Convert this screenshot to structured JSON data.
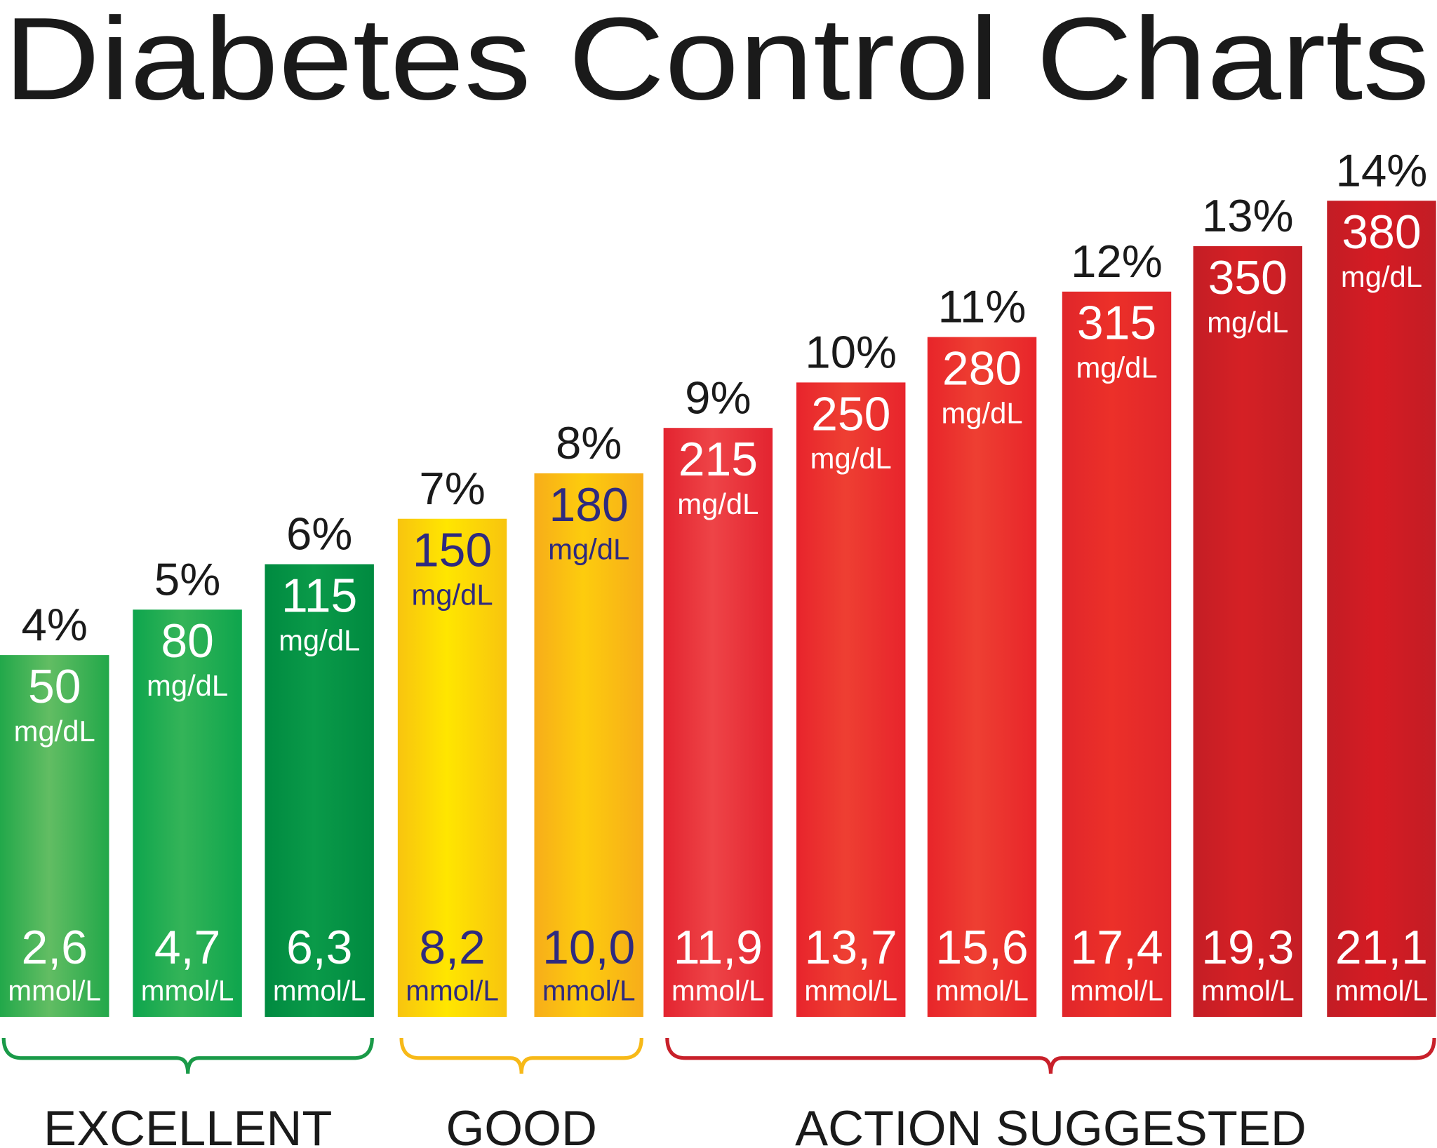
{
  "chart_data": {
    "type": "bar",
    "title": "Diabetes Control Charts",
    "categories": [
      "4%",
      "5%",
      "6%",
      "7%",
      "8%",
      "9%",
      "10%",
      "11%",
      "12%",
      "13%",
      "14%"
    ],
    "hba1c_percent": [
      4,
      5,
      6,
      7,
      8,
      9,
      10,
      11,
      12,
      13,
      14
    ],
    "bars": [
      {
        "percent": "4%",
        "mg_dl": "50",
        "mg_unit": "mg/dL",
        "mmol": "2,6",
        "mmol_unit": "mmol/L",
        "color": "#22a84a",
        "highlight": "#62bd63",
        "text_color": "#ffffff"
      },
      {
        "percent": "5%",
        "mg_dl": "80",
        "mg_unit": "mg/dL",
        "mmol": "4,7",
        "mmol_unit": "mmol/L",
        "color": "#0ea54d",
        "highlight": "#34b458",
        "text_color": "#ffffff"
      },
      {
        "percent": "6%",
        "mg_dl": "115",
        "mg_unit": "mg/dL",
        "mmol": "6,3",
        "mmol_unit": "mmol/L",
        "color": "#008a40",
        "highlight": "#0a9a49",
        "text_color": "#ffffff"
      },
      {
        "percent": "7%",
        "mg_dl": "150",
        "mg_unit": "mg/dL",
        "mmol": "8,2",
        "mmol_unit": "mmol/L",
        "color": "#f8c40f",
        "highlight": "#ffe600",
        "text_color": "#2e2a7f"
      },
      {
        "percent": "8%",
        "mg_dl": "180",
        "mg_unit": "mg/dL",
        "mmol": "10,0",
        "mmol_unit": "mmol/L",
        "color": "#f7ad1a",
        "highlight": "#fdcc0d",
        "text_color": "#2e2a7f"
      },
      {
        "percent": "9%",
        "mg_dl": "215",
        "mg_unit": "mg/dL",
        "mmol": "11,9",
        "mmol_unit": "mmol/L",
        "color": "#e32430",
        "highlight": "#ee4447",
        "text_color": "#ffffff"
      },
      {
        "percent": "10%",
        "mg_dl": "250",
        "mg_unit": "mg/dL",
        "mmol": "13,7",
        "mmol_unit": "mmol/L",
        "color": "#e8242c",
        "highlight": "#ee3f32",
        "text_color": "#ffffff"
      },
      {
        "percent": "11%",
        "mg_dl": "280",
        "mg_unit": "mg/dL",
        "mmol": "15,6",
        "mmol_unit": "mmol/L",
        "color": "#e8252a",
        "highlight": "#ee3f32",
        "text_color": "#ffffff"
      },
      {
        "percent": "12%",
        "mg_dl": "315",
        "mg_unit": "mg/dL",
        "mmol": "17,4",
        "mmol_unit": "mmol/L",
        "color": "#e0262a",
        "highlight": "#ec3029",
        "text_color": "#ffffff"
      },
      {
        "percent": "13%",
        "mg_dl": "350",
        "mg_unit": "mg/dL",
        "mmol": "19,3",
        "mmol_unit": "mmol/L",
        "color": "#c41e25",
        "highlight": "#d52025",
        "text_color": "#ffffff"
      },
      {
        "percent": "14%",
        "mg_dl": "380",
        "mg_unit": "mg/dL",
        "mmol": "21,1",
        "mmol_unit": "mmol/L",
        "color": "#c21d25",
        "highlight": "#d61b23",
        "text_color": "#ffffff"
      }
    ],
    "groups": [
      {
        "label": "EXCELLENT",
        "color": "#1a9a48",
        "from": 0,
        "to": 2
      },
      {
        "label": "GOOD",
        "color": "#f7b918",
        "from": 3,
        "to": 4
      },
      {
        "label": "ACTION SUGGESTED",
        "color": "#c8202a",
        "from": 5,
        "to": 10
      }
    ],
    "grid": false,
    "legend": "none"
  }
}
